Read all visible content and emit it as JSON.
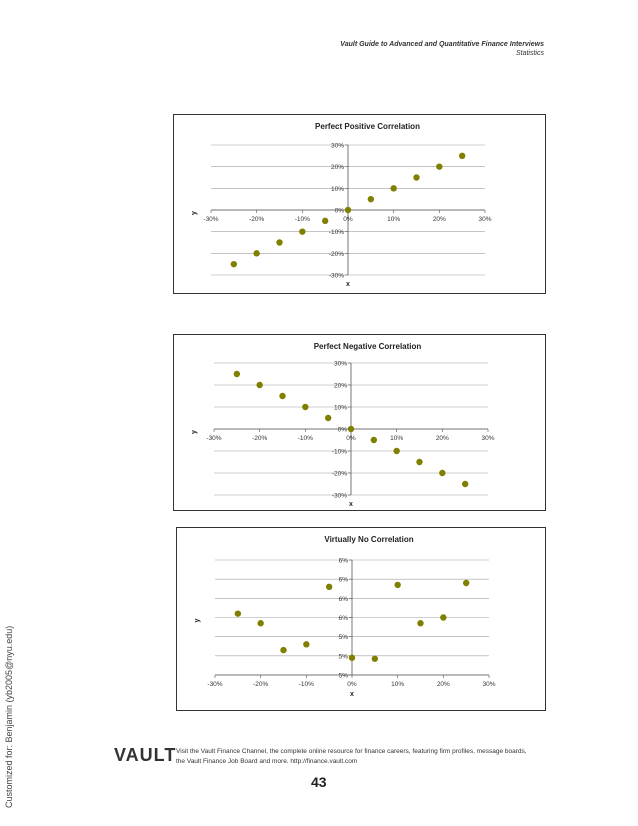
{
  "header": {
    "title": "Vault Guide to Advanced and Quantitative Finance Interviews",
    "section": "Statistics"
  },
  "sidebar_text": "Customized for: Benjamin (yb2005@nyu.edu)",
  "footer": {
    "logo": "VAULT",
    "text": "Visit the Vault Finance Channel, the complete online resource for finance careers, featuring firm profiles, message boards, the Vault Finance Job Board and more.  http://finance.vault.com",
    "page_number": "43"
  },
  "colors": {
    "point": "#7f7f00",
    "grid": "#a0a0a0",
    "axis": "#555555"
  },
  "chart_data": [
    {
      "type": "scatter",
      "title": "Perfect Positive Correlation",
      "xlabel": "x",
      "ylabel": "y",
      "xlim": [
        -0.3,
        0.3
      ],
      "ylim": [
        -0.3,
        0.3
      ],
      "x_ticks": [
        "-30%",
        "-20%",
        "-10%",
        "0%",
        "10%",
        "20%",
        "30%"
      ],
      "y_ticks": [
        "-30%",
        "-20%",
        "-10%",
        "0%",
        "10%",
        "20%",
        "30%"
      ],
      "grid": true,
      "x": [
        -0.25,
        -0.2,
        -0.15,
        -0.1,
        -0.05,
        0,
        0.05,
        0.1,
        0.15,
        0.2,
        0.25
      ],
      "y": [
        -0.25,
        -0.2,
        -0.15,
        -0.1,
        -0.05,
        0,
        0.05,
        0.1,
        0.15,
        0.2,
        0.25
      ]
    },
    {
      "type": "scatter",
      "title": "Perfect Negative Correlation",
      "xlabel": "x",
      "ylabel": "y",
      "xlim": [
        -0.3,
        0.3
      ],
      "ylim": [
        -0.3,
        0.3
      ],
      "x_ticks": [
        "-30%",
        "-20%",
        "-10%",
        "0%",
        "10%",
        "20%",
        "30%"
      ],
      "y_ticks": [
        "-30%",
        "-20%",
        "-10%",
        "0%",
        "10%",
        "20%",
        "30%"
      ],
      "grid": true,
      "x": [
        -0.25,
        -0.2,
        -0.15,
        -0.1,
        -0.05,
        0,
        0.05,
        0.1,
        0.15,
        0.2,
        0.25
      ],
      "y": [
        0.25,
        0.2,
        0.15,
        0.1,
        0.05,
        0,
        -0.05,
        -0.1,
        -0.15,
        -0.2,
        -0.25
      ]
    },
    {
      "type": "scatter",
      "title": "Virtually No Correlation",
      "xlabel": "x",
      "ylabel": "y",
      "xlim": [
        -0.3,
        0.3
      ],
      "ylim": [
        0,
        6
      ],
      "x_ticks": [
        "-30%",
        "-20%",
        "-10%",
        "0%",
        "10%",
        "20%",
        "30%"
      ],
      "y_ticks": [
        "5%",
        "5%",
        "5%",
        "6%",
        "6%",
        "6%",
        "6%"
      ],
      "grid": true,
      "x": [
        -0.25,
        -0.2,
        -0.15,
        -0.1,
        -0.05,
        0,
        0.05,
        0.1,
        0.15,
        0.2,
        0.25
      ],
      "y": [
        3.2,
        2.7,
        1.3,
        1.6,
        4.6,
        0.9,
        0.85,
        4.7,
        2.7,
        3.0,
        4.8
      ]
    }
  ]
}
